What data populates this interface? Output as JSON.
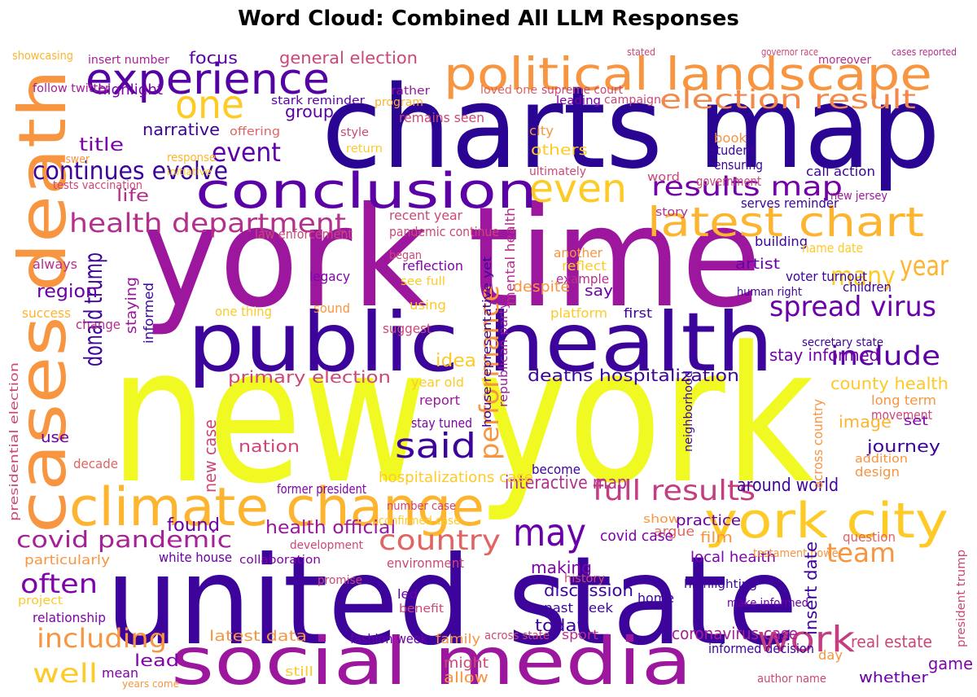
{
  "chart_data": {
    "type": "wordcloud",
    "title": "Word Cloud: Combined All LLM Responses",
    "words": [
      {
        "text": "new york",
        "weight": 230,
        "color": "#f0f921"
      },
      {
        "text": "york time",
        "weight": 170,
        "color": "#9c179e"
      },
      {
        "text": "united state",
        "weight": 150,
        "color": "#3d049b"
      },
      {
        "text": "charts map",
        "weight": 140,
        "color": "#2a0593"
      },
      {
        "text": "public health",
        "weight": 100,
        "color": "#3d049b"
      },
      {
        "text": "cases death",
        "weight": 80,
        "color": "#f89540"
      },
      {
        "text": "social media",
        "weight": 80,
        "color": "#9c179e"
      },
      {
        "text": "climate change",
        "weight": 65,
        "color": "#fdb42f"
      },
      {
        "text": "political landscape",
        "weight": 55,
        "color": "#f89540"
      },
      {
        "text": "experience",
        "weight": 52,
        "color": "#5402a3"
      },
      {
        "text": "conclusion",
        "weight": 60,
        "color": "#5c01a6"
      },
      {
        "text": "york city",
        "weight": 60,
        "color": "#fdca26"
      },
      {
        "text": "latest chart",
        "weight": 50,
        "color": "#fdb42f"
      },
      {
        "text": "one",
        "weight": 48,
        "color": "#fdca26"
      },
      {
        "text": "election result",
        "weight": 32,
        "color": "#f48849"
      },
      {
        "text": "even",
        "weight": 48,
        "color": "#fdca26"
      },
      {
        "text": "results map",
        "weight": 32,
        "color": "#7201a8"
      },
      {
        "text": "year",
        "weight": 34,
        "color": "#fdb42f"
      },
      {
        "text": "spread virus",
        "weight": 34,
        "color": "#6a00a8"
      },
      {
        "text": "include",
        "weight": 32,
        "color": "#5c01a6"
      },
      {
        "text": "said",
        "weight": 42,
        "color": "#3d049b"
      },
      {
        "text": "may",
        "weight": 46,
        "color": "#6a00a8"
      },
      {
        "text": "full results",
        "weight": 34,
        "color": "#c33d80"
      },
      {
        "text": "work",
        "weight": 44,
        "color": "#c33d80"
      },
      {
        "text": "team",
        "weight": 32,
        "color": "#f89540"
      },
      {
        "text": "country",
        "weight": 34,
        "color": "#e16462"
      },
      {
        "text": "covid pandemic",
        "weight": 28,
        "color": "#a62098"
      },
      {
        "text": "health department",
        "weight": 32,
        "color": "#b52f8c"
      },
      {
        "text": "continues evolve",
        "weight": 30,
        "color": "#3d049b"
      },
      {
        "text": "event",
        "weight": 32,
        "color": "#5c01a6"
      },
      {
        "text": "donald trump",
        "weight": 30,
        "color": "#3d049b"
      },
      {
        "text": "performance",
        "weight": 32,
        "color": "#f89540"
      },
      {
        "text": "many",
        "weight": 32,
        "color": "#fdca26"
      },
      {
        "text": "often",
        "weight": 32,
        "color": "#7e03a8"
      },
      {
        "text": "including",
        "weight": 32,
        "color": "#f89540"
      },
      {
        "text": "well",
        "weight": 32,
        "color": "#fdca26"
      },
      {
        "text": "interactive map",
        "weight": 22,
        "color": "#b52f8c"
      },
      {
        "text": "deaths hospitalization",
        "weight": 20,
        "color": "#3d049b"
      },
      {
        "text": "primary election",
        "weight": 20,
        "color": "#cc4778"
      },
      {
        "text": "stay informed",
        "weight": 20,
        "color": "#7201a8"
      },
      {
        "text": "county health",
        "weight": 20,
        "color": "#fdca26"
      },
      {
        "text": "around world",
        "weight": 22,
        "color": "#3d049b"
      },
      {
        "text": "journey",
        "weight": 20,
        "color": "#3d049b"
      },
      {
        "text": "coronavirus case",
        "weight": 20,
        "color": "#a62098"
      },
      {
        "text": "real estate",
        "weight": 20,
        "color": "#cc4778"
      },
      {
        "text": "game",
        "weight": 20,
        "color": "#7e03a8"
      },
      {
        "text": "whether",
        "weight": 18,
        "color": "#6a00a8"
      },
      {
        "text": "latest data",
        "weight": 18,
        "color": "#f89540"
      },
      {
        "text": "lead",
        "weight": 20,
        "color": "#7e03a8"
      },
      {
        "text": "health official",
        "weight": 22,
        "color": "#9c179e"
      },
      {
        "text": "found",
        "weight": 22,
        "color": "#6a00a8"
      },
      {
        "text": "nation",
        "weight": 20,
        "color": "#cc4778"
      },
      {
        "text": "new case",
        "weight": 20,
        "color": "#cc4778"
      },
      {
        "text": "region",
        "weight": 22,
        "color": "#6a00a8"
      },
      {
        "text": "title",
        "weight": 22,
        "color": "#7e03a8"
      },
      {
        "text": "life",
        "weight": 20,
        "color": "#b52f8c"
      },
      {
        "text": "narrative",
        "weight": 20,
        "color": "#3d049b"
      },
      {
        "text": "focus",
        "weight": 20,
        "color": "#5c01a6"
      },
      {
        "text": "group",
        "weight": 20,
        "color": "#5c01a6"
      },
      {
        "text": "general election",
        "weight": 20,
        "color": "#cc4778"
      },
      {
        "text": "highlight",
        "weight": 18,
        "color": "#7e03a8"
      },
      {
        "text": "follow twitter",
        "weight": 14,
        "color": "#a62098"
      },
      {
        "text": "insert number",
        "weight": 14,
        "color": "#a62098"
      },
      {
        "text": "showcasing",
        "weight": 14,
        "color": "#fdb42f"
      },
      {
        "text": "stark reminder",
        "weight": 14,
        "color": "#5c01a6"
      },
      {
        "text": "offering",
        "weight": 14,
        "color": "#e16462"
      },
      {
        "text": "rather",
        "weight": 14,
        "color": "#9c179e"
      },
      {
        "text": "remains seen",
        "weight": 16,
        "color": "#cc4778"
      },
      {
        "text": "loved one",
        "weight": 14,
        "color": "#e16462"
      },
      {
        "text": "supreme court",
        "weight": 14,
        "color": "#cc4778"
      },
      {
        "text": "leading",
        "weight": 14,
        "color": "#7e03a8"
      },
      {
        "text": "campaign",
        "weight": 14,
        "color": "#cc4778"
      },
      {
        "text": "moreover",
        "weight": 14,
        "color": "#b52f8c"
      },
      {
        "text": "cases reported",
        "weight": 12,
        "color": "#b52f8c"
      },
      {
        "text": "governor race",
        "weight": 12,
        "color": "#cc4778"
      },
      {
        "text": "stated",
        "weight": 12,
        "color": "#cc4778"
      },
      {
        "text": "mental health",
        "weight": 16,
        "color": "#b52f8c"
      },
      {
        "text": "others",
        "weight": 18,
        "color": "#fdca26"
      },
      {
        "text": "city",
        "weight": 16,
        "color": "#f89540"
      },
      {
        "text": "ultimately",
        "weight": 14,
        "color": "#cc4778"
      },
      {
        "text": "despite",
        "weight": 18,
        "color": "#f89540"
      },
      {
        "text": "say",
        "weight": 18,
        "color": "#6a00a8"
      },
      {
        "text": "another",
        "weight": 16,
        "color": "#f89540"
      },
      {
        "text": "reflect",
        "weight": 16,
        "color": "#fdca26"
      },
      {
        "text": "example",
        "weight": 16,
        "color": "#b52f8c"
      },
      {
        "text": "platform",
        "weight": 16,
        "color": "#fdca26"
      },
      {
        "text": "first",
        "weight": 16,
        "color": "#3d049b"
      },
      {
        "text": "artist",
        "weight": 18,
        "color": "#6a00a8"
      },
      {
        "text": "voter turnout",
        "weight": 16,
        "color": "#3d049b"
      },
      {
        "text": "children",
        "weight": 16,
        "color": "#3d049b"
      },
      {
        "text": "building",
        "weight": 16,
        "color": "#3d049b"
      },
      {
        "text": "name date",
        "weight": 16,
        "color": "#fdca26"
      },
      {
        "text": "human right",
        "weight": 14,
        "color": "#3d049b"
      },
      {
        "text": "secretary state",
        "weight": 14,
        "color": "#3d049b"
      },
      {
        "text": "serves reminder",
        "weight": 16,
        "color": "#3d049b"
      },
      {
        "text": "call action",
        "weight": 16,
        "color": "#3d049b"
      },
      {
        "text": "student",
        "weight": 16,
        "color": "#3d049b"
      },
      {
        "text": "ensuring",
        "weight": 16,
        "color": "#3d049b"
      },
      {
        "text": "government",
        "weight": 16,
        "color": "#cc4778"
      },
      {
        "text": "book",
        "weight": 16,
        "color": "#f89540"
      },
      {
        "text": "story",
        "weight": 14,
        "color": "#b52f8c"
      },
      {
        "text": "new jersey",
        "weight": 14,
        "color": "#9c179e"
      },
      {
        "text": "neighborhood",
        "weight": 14,
        "color": "#3d049b"
      },
      {
        "text": "long term",
        "weight": 16,
        "color": "#f89540"
      },
      {
        "text": "movement",
        "weight": 16,
        "color": "#cc4778"
      },
      {
        "text": "image",
        "weight": 20,
        "color": "#fdb42f"
      },
      {
        "text": "set",
        "weight": 16,
        "color": "#7e03a8"
      },
      {
        "text": "addition",
        "weight": 14,
        "color": "#f89540"
      },
      {
        "text": "design",
        "weight": 16,
        "color": "#f89540"
      },
      {
        "text": "local health",
        "weight": 18,
        "color": "#7e03a8"
      },
      {
        "text": "testament power",
        "weight": 14,
        "color": "#f89540"
      },
      {
        "text": "highlighting",
        "weight": 14,
        "color": "#3d049b"
      },
      {
        "text": "home",
        "weight": 16,
        "color": "#3d049b"
      },
      {
        "text": "argue",
        "weight": 16,
        "color": "#e16462"
      },
      {
        "text": "film",
        "weight": 18,
        "color": "#f89540"
      },
      {
        "text": "show",
        "weight": 14,
        "color": "#f89540"
      },
      {
        "text": "practice",
        "weight": 18,
        "color": "#6a00a8"
      },
      {
        "text": "covid case",
        "weight": 18,
        "color": "#7e03a8"
      },
      {
        "text": "making",
        "weight": 20,
        "color": "#7e03a8"
      },
      {
        "text": "discussion",
        "weight": 20,
        "color": "#3d049b"
      },
      {
        "text": "past week",
        "weight": 16,
        "color": "#3d049b"
      },
      {
        "text": "today",
        "weight": 20,
        "color": "#3d049b"
      },
      {
        "text": "sport",
        "weight": 16,
        "color": "#b52f8c"
      },
      {
        "text": "history",
        "weight": 14,
        "color": "#cc4778"
      },
      {
        "text": "might",
        "weight": 18,
        "color": "#cc4778"
      },
      {
        "text": "allow",
        "weight": 18,
        "color": "#f89540"
      },
      {
        "text": "family",
        "weight": 16,
        "color": "#f89540"
      },
      {
        "text": "across state",
        "weight": 14,
        "color": "#cc4778"
      },
      {
        "text": "fashion week",
        "weight": 16,
        "color": "#6a00a8"
      },
      {
        "text": "still",
        "weight": 16,
        "color": "#fdca26"
      },
      {
        "text": "mean",
        "weight": 16,
        "color": "#7e03a8"
      },
      {
        "text": "years come",
        "weight": 12,
        "color": "#f89540"
      },
      {
        "text": "relationship",
        "weight": 16,
        "color": "#7e03a8"
      },
      {
        "text": "project",
        "weight": 14,
        "color": "#fdca26"
      },
      {
        "text": "particularly",
        "weight": 16,
        "color": "#f89540"
      },
      {
        "text": "white house",
        "weight": 16,
        "color": "#6a00a8"
      },
      {
        "text": "collaboration",
        "weight": 14,
        "color": "#7e03a8"
      },
      {
        "text": "development",
        "weight": 14,
        "color": "#cc4778"
      },
      {
        "text": "environment",
        "weight": 16,
        "color": "#cc4778"
      },
      {
        "text": "led",
        "weight": 16,
        "color": "#6a00a8"
      },
      {
        "text": "benefit",
        "weight": 14,
        "color": "#cc4778"
      },
      {
        "text": "promise",
        "weight": 14,
        "color": "#cc4778"
      },
      {
        "text": "hospitalizations case",
        "weight": 18,
        "color": "#fdca26"
      },
      {
        "text": "become",
        "weight": 16,
        "color": "#3d049b"
      },
      {
        "text": "number case",
        "weight": 14,
        "color": "#cc4778"
      },
      {
        "text": "former president",
        "weight": 16,
        "color": "#7e03a8"
      },
      {
        "text": "confirmed case",
        "weight": 14,
        "color": "#fdca26"
      },
      {
        "text": "year old",
        "weight": 16,
        "color": "#fdca26"
      },
      {
        "text": "report",
        "weight": 16,
        "color": "#9c179e"
      },
      {
        "text": "stay tuned",
        "weight": 16,
        "color": "#7e03a8"
      },
      {
        "text": "recent year",
        "weight": 16,
        "color": "#cc4778"
      },
      {
        "text": "pandemic continue",
        "weight": 16,
        "color": "#cc4778"
      },
      {
        "text": "law enforcement",
        "weight": 16,
        "color": "#cc4778"
      },
      {
        "text": "reflection",
        "weight": 16,
        "color": "#7e03a8"
      },
      {
        "text": "legacy",
        "weight": 16,
        "color": "#7e03a8"
      },
      {
        "text": "sound",
        "weight": 16,
        "color": "#f89540"
      },
      {
        "text": "see full",
        "weight": 14,
        "color": "#fdca26"
      },
      {
        "text": "using",
        "weight": 16,
        "color": "#fdca26"
      },
      {
        "text": "suggest",
        "weight": 16,
        "color": "#cc4778"
      },
      {
        "text": "always",
        "weight": 16,
        "color": "#b52f8c"
      },
      {
        "text": "success",
        "weight": 16,
        "color": "#fdb42f"
      },
      {
        "text": "change",
        "weight": 16,
        "color": "#b52f8c"
      },
      {
        "text": "use",
        "weight": 18,
        "color": "#6a00a8"
      },
      {
        "text": "decade",
        "weight": 16,
        "color": "#e16462"
      },
      {
        "text": "one thing",
        "weight": 16,
        "color": "#fdca26"
      },
      {
        "text": "answer",
        "weight": 14,
        "color": "#f89540"
      },
      {
        "text": "response",
        "weight": 14,
        "color": "#fdb42f"
      },
      {
        "text": "tests vaccination",
        "weight": 14,
        "color": "#cc4778"
      },
      {
        "text": "initiative",
        "weight": 12,
        "color": "#fdca26"
      },
      {
        "text": "began",
        "weight": 14,
        "color": "#cc4778"
      },
      {
        "text": "word",
        "weight": 14,
        "color": "#cc4778"
      },
      {
        "text": "return",
        "weight": 14,
        "color": "#fdca26"
      },
      {
        "text": "style",
        "weight": 14,
        "color": "#cc4778"
      },
      {
        "text": "program",
        "weight": 14,
        "color": "#fdb42f"
      },
      {
        "text": "idea",
        "weight": 22,
        "color": "#fdca26"
      },
      {
        "text": "make informed",
        "weight": 14,
        "color": "#6a00a8"
      },
      {
        "text": "informed decision",
        "weight": 16,
        "color": "#3d049b"
      },
      {
        "text": "author name",
        "weight": 14,
        "color": "#cc4778"
      },
      {
        "text": "day",
        "weight": 16,
        "color": "#f89540"
      },
      {
        "text": "question",
        "weight": 16,
        "color": "#e16462"
      },
      {
        "text": "presidential election",
        "weight": 14,
        "color": "#cc4778"
      },
      {
        "text": "across country",
        "weight": 16,
        "color": "#f89540"
      },
      {
        "text": "president trump",
        "weight": 14,
        "color": "#cc4778"
      },
      {
        "text": "house representative yet",
        "weight": 14,
        "color": "#3d049b"
      },
      {
        "text": "republican party",
        "weight": 14,
        "color": "#9c179e"
      },
      {
        "text": "insert date",
        "weight": 20,
        "color": "#3d049b"
      },
      {
        "text": "staying",
        "weight": 18,
        "color": "#9c179e"
      },
      {
        "text": "informed",
        "weight": 16,
        "color": "#3d049b"
      }
    ]
  }
}
